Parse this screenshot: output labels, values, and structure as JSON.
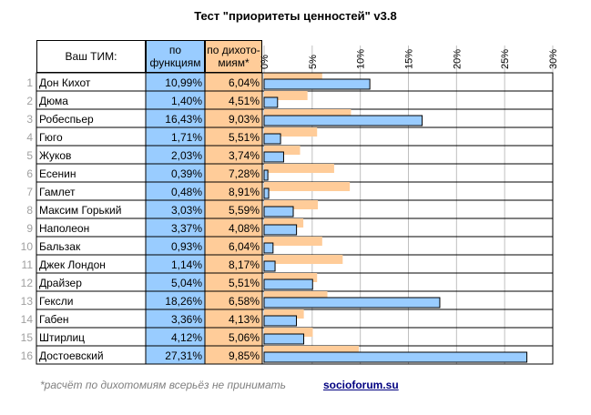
{
  "chart_data": {
    "type": "bar",
    "title": "Тест \"приоритеты ценностей\" v3.8",
    "columns": {
      "tim": "Ваш ТИМ:",
      "functions": [
        "по",
        "функциям"
      ],
      "dichotomies": [
        "по дихото-",
        "миям*"
      ]
    },
    "categories": [
      "Дон Кихот",
      "Дюма",
      "Робеспьер",
      "Гюго",
      "Жуков",
      "Есенин",
      "Гамлет",
      "Максим Горький",
      "Наполеон",
      "Бальзак",
      "Джек Лондон",
      "Драйзер",
      "Гексли",
      "Габен",
      "Штирлиц",
      "Достоевский"
    ],
    "row_numbers": [
      "1",
      "2",
      "3",
      "4",
      "5",
      "6",
      "7",
      "8",
      "9",
      "10",
      "11",
      "12",
      "13",
      "14",
      "15",
      "16"
    ],
    "series": [
      {
        "name": "по функциям",
        "values": [
          10.99,
          1.4,
          16.43,
          1.71,
          2.03,
          0.39,
          0.48,
          3.03,
          3.37,
          0.93,
          1.14,
          5.04,
          18.26,
          3.36,
          4.12,
          27.31
        ],
        "color": "#99ccff"
      },
      {
        "name": "по дихотомиям*",
        "values": [
          6.04,
          4.51,
          9.03,
          5.51,
          3.74,
          7.28,
          8.91,
          5.59,
          4.08,
          6.04,
          8.17,
          5.51,
          6.58,
          4.13,
          5.06,
          9.85
        ],
        "color": "#ffcc99"
      }
    ],
    "labels_functions": [
      "10,99%",
      "1,40%",
      "16,43%",
      "1,71%",
      "2,03%",
      "0,39%",
      "0,48%",
      "3,03%",
      "3,37%",
      "0,93%",
      "1,14%",
      "5,04%",
      "18,26%",
      "3,36%",
      "4,12%",
      "27,31%"
    ],
    "labels_dichotomies": [
      "6,04%",
      "4,51%",
      "9,03%",
      "5,51%",
      "3,74%",
      "7,28%",
      "8,91%",
      "5,59%",
      "4,08%",
      "6,04%",
      "8,17%",
      "5,51%",
      "6,58%",
      "4,13%",
      "5,06%",
      "9,85%"
    ],
    "axis_ticks": [
      0,
      5,
      10,
      15,
      20,
      25,
      30
    ],
    "axis_tick_labels": [
      "0%",
      "5%",
      "10%",
      "15%",
      "20%",
      "25%",
      "30%"
    ],
    "xlim": [
      0,
      30
    ],
    "grid": true
  },
  "footer": {
    "note": "*расчёт по дихотомиям всерьёз не принимать",
    "link": "socioforum.su"
  }
}
